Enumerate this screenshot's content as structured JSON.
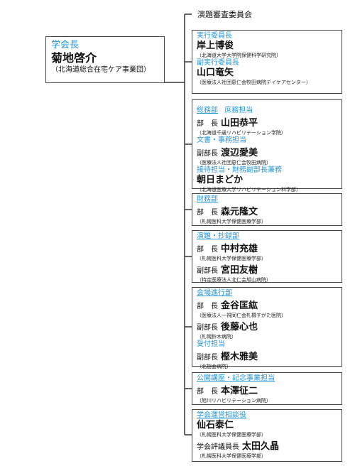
{
  "leader": {
    "title": "学会長",
    "name": "菊地啓介",
    "affiliation": "（北海道総合在宅ケア事業団）"
  },
  "committee_header": "演題審査委員会",
  "exec": {
    "title": "実行委員長",
    "name": "岸上博俊",
    "affiliation": "（北海道大学大学院保健科学研究院）",
    "vice_title": "副実行委員長",
    "vice_name": "山口竜矢",
    "vice_affiliation": "（医療法人社団恵仁会牧田病院デイケアセンター）"
  },
  "general": {
    "title": "総務部",
    "subtitle": "庶務担当",
    "head_role": "部　長",
    "head_name": "山田恭平",
    "head_affiliation": "（北海道千歳リハビリテーション学院）",
    "doc_title": "文書・事務担当",
    "deputy_role": "副部長",
    "deputy_name": "渡辺愛美",
    "deputy_affiliation": "（医療法人社団恵仁会牧田病院）",
    "reception_title": "接待担当・財務副部長兼務",
    "reception_name": "朝日まどか",
    "reception_affiliation": "（北海道医療大学リハビリテーション科学部）"
  },
  "finance": {
    "title": "財務部",
    "head_role": "部　長",
    "head_name": "森元隆文",
    "head_affiliation": "（札幌医科大学保健医療学部）"
  },
  "abstract": {
    "title": "演題・抄録部",
    "head_role": "部　長",
    "head_name": "中村充雄",
    "head_affiliation": "（札幌医科大学保健医療学部）",
    "deputy_role": "副部長",
    "deputy_name": "宮田友樹",
    "deputy_affiliation": "（特定医療法人北仁会旭山病院）"
  },
  "venue": {
    "title": "会場進行部",
    "head_role": "部　長",
    "head_name": "金谷匡紘",
    "head_affiliation": "（医療法人一視同仁会札樽すがた医院）",
    "deputy_role": "副部長",
    "deputy_name": "後藤心也",
    "deputy_affiliation": "（札幌鈴木病院）",
    "reception_title": "受付担当",
    "reception_role": "副部長",
    "reception_name": "樫木雅美",
    "reception_affiliation": "（北樹会病院）"
  },
  "lecture": {
    "title": "公開講座・記念事業担当",
    "head_role": "部　長",
    "head_name": "本澤征二",
    "head_affiliation": "（旭川リハビリテーション病院）"
  },
  "advisor": {
    "title": "学会運営相談役",
    "name": "仙石泰仁",
    "affiliation": "（札幌医科大学保健医療学部）",
    "eval_role": "学会評議員長",
    "eval_name": "太田久晶",
    "eval_affiliation": "（札幌医科大学保健医療学部）"
  }
}
